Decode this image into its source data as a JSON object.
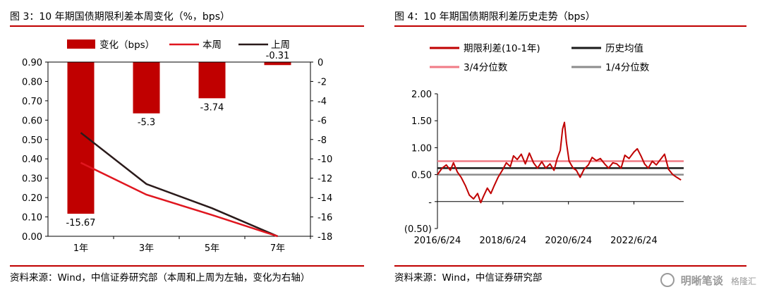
{
  "left": {
    "title": "图 3：10 年期国债期限利差本周变化（%，bps）",
    "source": "资料来源：Wind，中信证券研究部（本周和上周为左轴，变化为右轴）",
    "chart_data": {
      "type": "bar+line",
      "categories": [
        "1年",
        "3年",
        "5年",
        "7年"
      ],
      "bars": {
        "name": "变化（bps）",
        "axis": "right",
        "values": [
          -15.67,
          -5.3,
          -3.74,
          -0.31
        ],
        "labels": [
          "-15.67",
          "-5.3",
          "-3.74",
          "-0.31"
        ],
        "color": "#c00000"
      },
      "series": [
        {
          "name": "本周",
          "axis": "left",
          "values": [
            0.38,
            0.215,
            0.11,
            0.0
          ],
          "color": "#e0161f"
        },
        {
          "name": "上周",
          "axis": "left",
          "values": [
            0.535,
            0.27,
            0.145,
            0.0
          ],
          "color": "#2a1a1a"
        }
      ],
      "left_axis": {
        "ylim": [
          0,
          0.9
        ],
        "ticks": [
          "0.00",
          "0.10",
          "0.20",
          "0.30",
          "0.40",
          "0.50",
          "0.60",
          "0.70",
          "0.80",
          "0.90"
        ]
      },
      "right_axis": {
        "ylim": [
          -18,
          0
        ],
        "ticks": [
          "0",
          "-2",
          "-4",
          "-6",
          "-8",
          "-10",
          "-12",
          "-14",
          "-16",
          "-18"
        ]
      },
      "legend_position": "top"
    }
  },
  "right": {
    "title": "图 4：10 年期国债期限利差历史走势（bps）",
    "source": "资料来源：Wind，中信证券研究部",
    "chart_data": {
      "type": "line",
      "x_ticks": [
        "2016/6/24",
        "2018/6/24",
        "2020/6/24",
        "2022/6/24"
      ],
      "y_ticks": [
        "2.00",
        "1.50",
        "1.00",
        "0.50",
        "-",
        "(0.50)"
      ],
      "ylim": [
        -0.5,
        2.0
      ],
      "xlim": [
        "2016-06-24",
        "2023-12-31"
      ],
      "series": [
        {
          "name": "期限利差(10-1年)",
          "color": "#c00000",
          "points": [
            [
              "2016-06-24",
              0.5
            ],
            [
              "2016-08-15",
              0.62
            ],
            [
              "2016-10-01",
              0.68
            ],
            [
              "2016-11-15",
              0.58
            ],
            [
              "2016-12-20",
              0.72
            ],
            [
              "2017-02-01",
              0.55
            ],
            [
              "2017-03-15",
              0.45
            ],
            [
              "2017-05-01",
              0.3
            ],
            [
              "2017-06-15",
              0.12
            ],
            [
              "2017-08-01",
              0.05
            ],
            [
              "2017-09-15",
              0.15
            ],
            [
              "2017-10-20",
              -0.02
            ],
            [
              "2017-11-20",
              0.1
            ],
            [
              "2018-01-01",
              0.25
            ],
            [
              "2018-02-10",
              0.15
            ],
            [
              "2018-03-20",
              0.3
            ],
            [
              "2018-05-01",
              0.45
            ],
            [
              "2018-06-24",
              0.6
            ],
            [
              "2018-08-01",
              0.72
            ],
            [
              "2018-09-15",
              0.65
            ],
            [
              "2018-10-20",
              0.85
            ],
            [
              "2018-12-01",
              0.78
            ],
            [
              "2019-01-15",
              0.88
            ],
            [
              "2019-03-01",
              0.7
            ],
            [
              "2019-04-15",
              0.9
            ],
            [
              "2019-06-01",
              0.72
            ],
            [
              "2019-07-15",
              0.62
            ],
            [
              "2019-09-01",
              0.74
            ],
            [
              "2019-10-15",
              0.62
            ],
            [
              "2019-12-01",
              0.7
            ],
            [
              "2020-01-15",
              0.58
            ],
            [
              "2020-02-20",
              0.8
            ],
            [
              "2020-03-25",
              0.95
            ],
            [
              "2020-04-20",
              1.35
            ],
            [
              "2020-05-10",
              1.47
            ],
            [
              "2020-06-01",
              1.1
            ],
            [
              "2020-07-01",
              0.75
            ],
            [
              "2020-08-15",
              0.62
            ],
            [
              "2020-09-20",
              0.58
            ],
            [
              "2020-11-01",
              0.45
            ],
            [
              "2020-12-15",
              0.6
            ],
            [
              "2021-02-01",
              0.68
            ],
            [
              "2021-03-15",
              0.82
            ],
            [
              "2021-05-01",
              0.76
            ],
            [
              "2021-06-15",
              0.8
            ],
            [
              "2021-08-01",
              0.7
            ],
            [
              "2021-09-15",
              0.62
            ],
            [
              "2021-11-01",
              0.72
            ],
            [
              "2021-12-15",
              0.7
            ],
            [
              "2022-02-01",
              0.62
            ],
            [
              "2022-03-15",
              0.86
            ],
            [
              "2022-05-01",
              0.8
            ],
            [
              "2022-06-24",
              0.92
            ],
            [
              "2022-08-01",
              0.98
            ],
            [
              "2022-09-10",
              0.85
            ],
            [
              "2022-10-20",
              0.7
            ],
            [
              "2022-12-01",
              0.62
            ],
            [
              "2023-01-15",
              0.75
            ],
            [
              "2023-03-01",
              0.68
            ],
            [
              "2023-04-15",
              0.78
            ],
            [
              "2023-06-01",
              0.88
            ],
            [
              "2023-07-15",
              0.6
            ],
            [
              "2023-09-01",
              0.5
            ],
            [
              "2023-10-15",
              0.45
            ],
            [
              "2023-12-01",
              0.4
            ]
          ]
        },
        {
          "name": "历史均值",
          "color": "#1a1a1a",
          "constant": 0.62
        },
        {
          "name": "3/4分位数",
          "color": "#f07a85",
          "constant": 0.75
        },
        {
          "name": "1/4分位数",
          "color": "#8c8c8c",
          "constant": 0.5
        }
      ],
      "legend_position": "top"
    }
  },
  "watermark": {
    "text": "明晰笔谈",
    "brand": "格隆汇"
  }
}
